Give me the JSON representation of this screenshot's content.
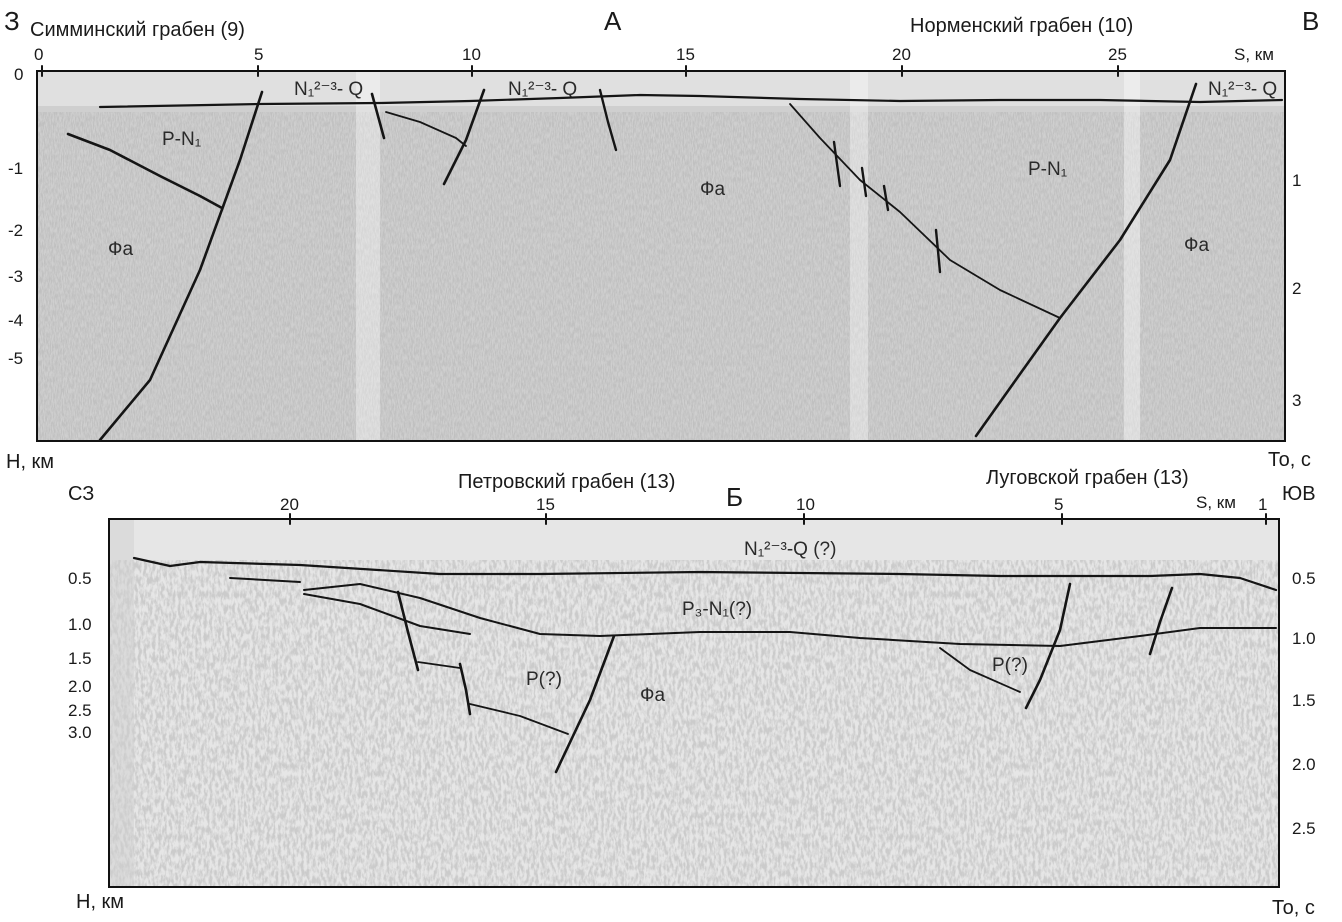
{
  "panel_a": {
    "letter": "А",
    "west_letter": "З",
    "east_letter": "В",
    "graben_left": "Симминский грабен (9)",
    "graben_right": "Норменский грабен (10)",
    "s_unit": "S, км",
    "top_ticks": [
      "0",
      "5",
      "10",
      "15",
      "20",
      "25"
    ],
    "depth_ticks": [
      "0",
      "-1",
      "-2",
      "-3",
      "-4",
      "-5"
    ],
    "time_ticks": [
      "1",
      "2",
      "3"
    ],
    "h_unit": "Н, км",
    "t_unit": "То, с",
    "labels": {
      "n1q_1": "N₁²⁻³- Q",
      "n1q_2": "N₁²⁻³- Q",
      "n1q_3": "N₁²⁻³- Q",
      "pn1_left": "P-N₁",
      "pn1_right": "P-N₁",
      "fa_1": "Фа",
      "fa_2": "Фа",
      "fa_3": "Фа"
    }
  },
  "panel_b": {
    "letter": "Б",
    "west_letter": "СЗ",
    "east_letter": "ЮВ",
    "graben_left": "Петровский грабен (13)",
    "graben_right": "Луговской грабен (13)",
    "s_unit": "S, км",
    "top_ticks": [
      "20",
      "15",
      "10",
      "5",
      "1"
    ],
    "depth_ticks": [
      "0.5",
      "1.0",
      "1.5",
      "2.0",
      "2.5",
      "3.0"
    ],
    "time_ticks": [
      "0.5",
      "1.0",
      "1.5",
      "2.0",
      "2.5"
    ],
    "h_unit": "Н, км",
    "t_unit": "То, с",
    "labels": {
      "n1q": "N₁²⁻³-Q (?)",
      "p3n1": "P₃-N₁(?)",
      "p_left": "P(?)",
      "p_right": "P(?)",
      "fa": "Фа"
    }
  },
  "colors": {
    "seismic_light": "#d9d9d9",
    "seismic_dark": "#3a3a3a",
    "line": "#151515"
  }
}
